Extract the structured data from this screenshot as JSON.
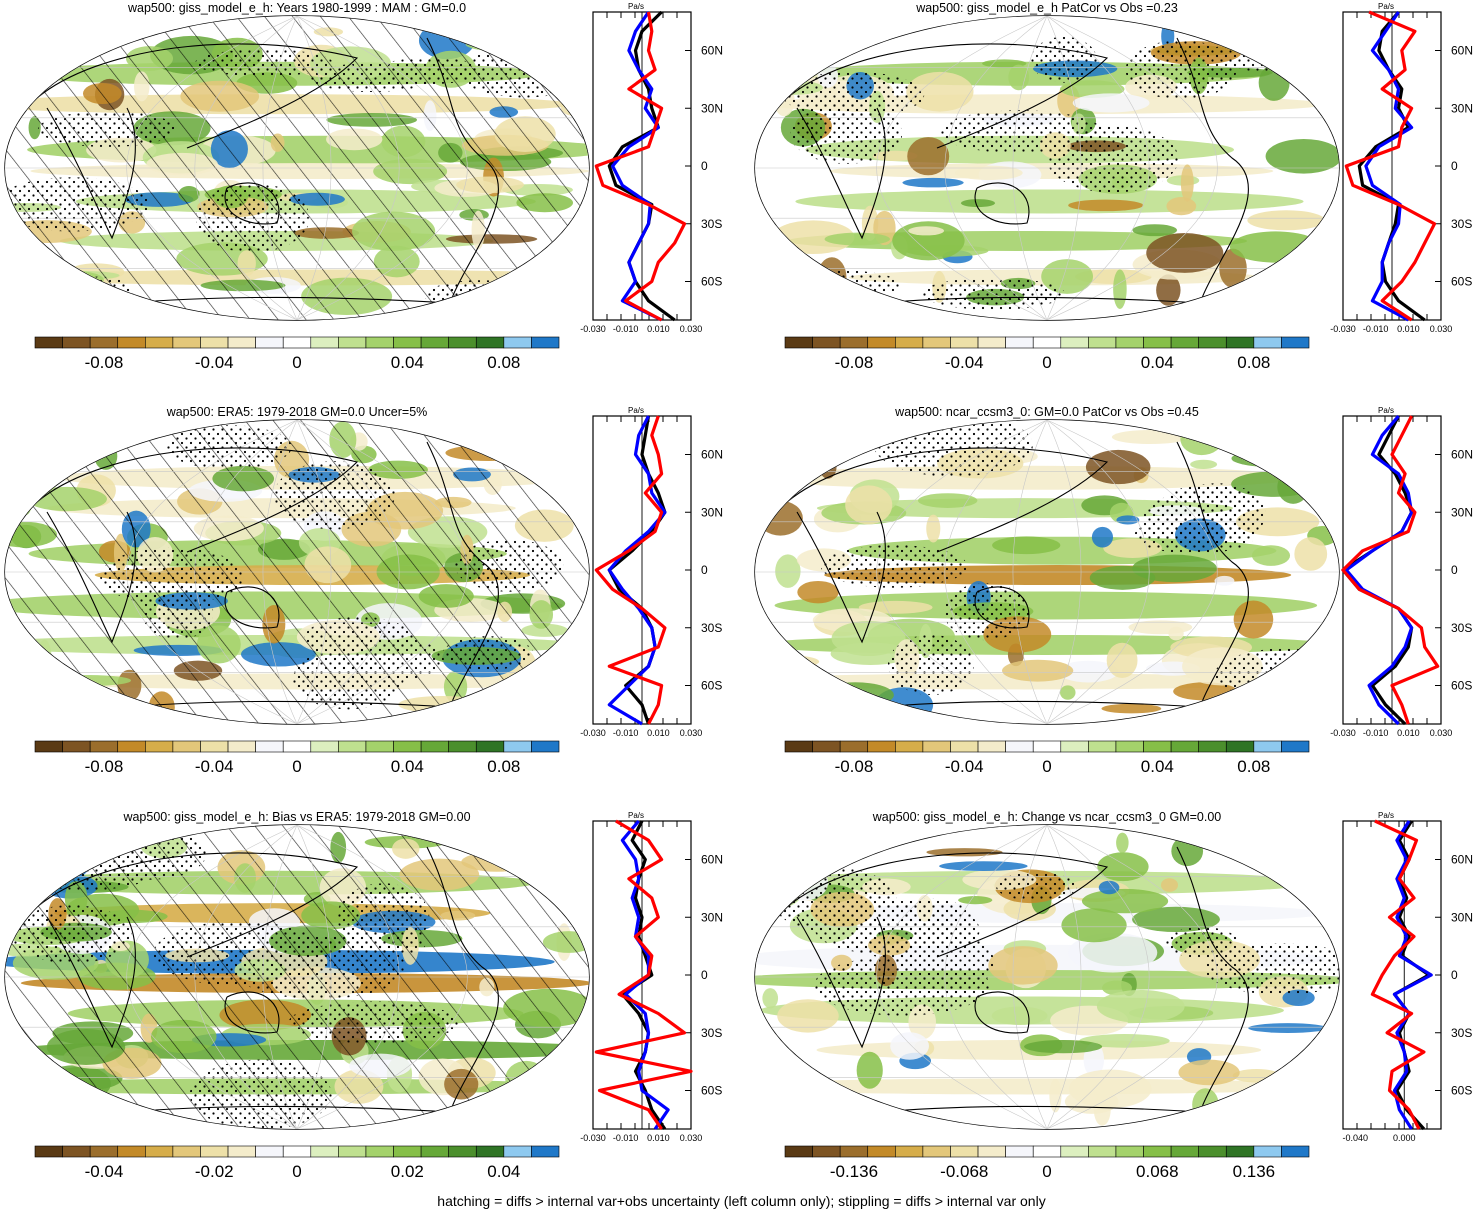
{
  "footnote": "hatching = diffs > internal var+obs uncertainty (left column only); stippling = diffs > internal var only",
  "colors": {
    "palette": [
      "#5a3a14",
      "#7d5423",
      "#9b6e2c",
      "#c38a28",
      "#d6ad4a",
      "#e3c77a",
      "#ede0a8",
      "#f4eccb",
      "#f5f6fb",
      "#ffffff",
      "#dcefbf",
      "#bfe08f",
      "#a4d26b",
      "#86bf48",
      "#66a838",
      "#4b8f2c",
      "#2f7425",
      "#8ec9ef",
      "#1f78c8"
    ],
    "model": "#000000",
    "obs": "#0000ff",
    "diff": "#ff0000"
  },
  "chart_data": [
    {
      "type": "heatmap",
      "title": "wap500: giss_model_e_h: Years 1980-1999 : MAM : GM=0.0",
      "hatching": true,
      "colorbar": {
        "ticks": [
          "-0.08",
          "-0.04",
          "0",
          "0.04",
          "0.08"
        ]
      },
      "profile": {
        "type": "line",
        "unit": "Pa/s",
        "xticks": [
          "-0.030",
          "-0.010",
          "0.010",
          "0.030"
        ],
        "xlim": [
          -0.03,
          0.03
        ],
        "ylim": [
          -80,
          80
        ],
        "yticks": [
          "60N",
          "30N",
          "0",
          "30S",
          "60S"
        ],
        "lat": [
          80,
          70,
          60,
          50,
          40,
          30,
          20,
          10,
          0,
          -10,
          -20,
          -30,
          -40,
          -50,
          -60,
          -70,
          -80
        ],
        "series": [
          {
            "color_key": "model",
            "values": [
              0.012,
              0.0,
              -0.004,
              -0.002,
              0.004,
              0.006,
              0.01,
              -0.012,
              -0.02,
              -0.016,
              0.006,
              0.004,
              -0.002,
              -0.008,
              -0.004,
              0.004,
              0.02
            ]
          },
          {
            "color_key": "obs",
            "values": [
              0.004,
              -0.004,
              -0.008,
              -0.002,
              0.006,
              0.002,
              0.01,
              -0.008,
              -0.018,
              -0.012,
              0.005,
              0.004,
              -0.002,
              -0.008,
              -0.004,
              -0.012,
              0.012
            ]
          },
          {
            "color_key": "diff",
            "values": [
              0.004,
              0.006,
              0.004,
              0.008,
              -0.008,
              0.012,
              0.008,
              0.004,
              -0.028,
              -0.024,
              0.004,
              0.026,
              0.02,
              0.01,
              0.006,
              -0.01,
              0.012
            ]
          }
        ]
      }
    },
    {
      "type": "heatmap",
      "title": "wap500: giss_model_e_h PatCor vs Obs =0.23",
      "hatching": false,
      "colorbar": {
        "ticks": [
          "-0.08",
          "-0.04",
          "0",
          "0.04",
          "0.08"
        ]
      },
      "profile": {
        "type": "line",
        "unit": "Pa/s",
        "xticks": [
          "-0.030",
          "-0.010",
          "0.010",
          "0.030"
        ],
        "xlim": [
          -0.03,
          0.03
        ],
        "ylim": [
          -80,
          80
        ],
        "yticks": [
          "60N",
          "30N",
          "0",
          "30S",
          "60S"
        ],
        "lat": [
          80,
          70,
          60,
          50,
          40,
          30,
          20,
          10,
          0,
          -10,
          -20,
          -30,
          -40,
          -50,
          -60,
          -70,
          -80
        ],
        "series": [
          {
            "color_key": "model",
            "values": [
              0.004,
              -0.006,
              -0.008,
              -0.002,
              0.006,
              0.004,
              0.01,
              -0.01,
              -0.02,
              -0.018,
              0.004,
              0.002,
              -0.002,
              -0.006,
              -0.004,
              0.004,
              0.02
            ]
          },
          {
            "color_key": "obs",
            "values": [
              0.004,
              -0.004,
              -0.012,
              -0.002,
              0.004,
              0.002,
              0.012,
              -0.008,
              -0.016,
              -0.012,
              0.005,
              0.004,
              -0.002,
              -0.006,
              -0.006,
              -0.012,
              0.01
            ]
          },
          {
            "color_key": "diff",
            "values": [
              -0.014,
              0.014,
              0.006,
              0.008,
              -0.006,
              0.012,
              0.006,
              0.004,
              -0.028,
              -0.024,
              0.004,
              0.026,
              0.02,
              0.014,
              0.006,
              -0.006,
              0.012
            ]
          }
        ]
      }
    },
    {
      "type": "heatmap",
      "title": "wap500: ERA5: 1979-2018 GM=0.0 Uncer=5%",
      "hatching": true,
      "colorbar": {
        "ticks": [
          "-0.08",
          "-0.04",
          "0",
          "0.04",
          "0.08"
        ]
      },
      "profile": {
        "type": "line",
        "unit": "Pa/s",
        "xticks": [
          "-0.030",
          "-0.010",
          "0.010",
          "0.030"
        ],
        "xlim": [
          -0.03,
          0.03
        ],
        "ylim": [
          -80,
          80
        ],
        "yticks": [
          "60N",
          "30N",
          "0",
          "30S",
          "60S"
        ],
        "lat": [
          80,
          70,
          60,
          50,
          40,
          30,
          20,
          10,
          0,
          -10,
          -20,
          -30,
          -40,
          -50,
          -60,
          -70,
          -80
        ],
        "series": [
          {
            "color_key": "model",
            "values": [
              0.004,
              0.002,
              0.0,
              0.004,
              0.01,
              0.014,
              0.006,
              -0.006,
              -0.02,
              -0.014,
              0.0,
              0.006,
              0.008,
              0.004,
              -0.01,
              0.0,
              0.004
            ]
          },
          {
            "color_key": "obs",
            "values": [
              0.004,
              -0.002,
              -0.004,
              0.004,
              0.006,
              0.014,
              0.004,
              -0.01,
              -0.02,
              -0.012,
              -0.002,
              0.006,
              0.008,
              0.004,
              -0.008,
              -0.02,
              0.0
            ]
          },
          {
            "color_key": "diff",
            "values": [
              0.01,
              0.006,
              0.01,
              0.012,
              0.002,
              0.012,
              0.008,
              -0.008,
              -0.028,
              -0.018,
              0.0,
              0.014,
              0.01,
              -0.02,
              0.012,
              0.01,
              0.004
            ]
          }
        ]
      }
    },
    {
      "type": "heatmap",
      "title": "wap500: ncar_ccsm3_0: GM=0.0 PatCor vs Obs =0.45",
      "hatching": false,
      "colorbar": {
        "ticks": [
          "-0.08",
          "-0.04",
          "0",
          "0.04",
          "0.08"
        ]
      },
      "profile": {
        "type": "line",
        "unit": "Pa/s",
        "xticks": [
          "-0.030",
          "-0.010",
          "0.010",
          "0.030"
        ],
        "xlim": [
          -0.03,
          0.03
        ],
        "ylim": [
          -80,
          80
        ],
        "yticks": [
          "60N",
          "30N",
          "0",
          "30S",
          "60S"
        ],
        "lat": [
          80,
          70,
          60,
          50,
          40,
          30,
          20,
          10,
          0,
          -10,
          -20,
          -30,
          -40,
          -50,
          -60,
          -70,
          -80
        ],
        "series": [
          {
            "color_key": "model",
            "values": [
              0.004,
              -0.002,
              -0.008,
              0.002,
              0.008,
              0.012,
              0.006,
              -0.012,
              -0.03,
              -0.02,
              0.004,
              0.012,
              0.01,
              0.002,
              -0.012,
              -0.004,
              0.008
            ]
          },
          {
            "color_key": "obs",
            "values": [
              0.004,
              -0.006,
              -0.012,
              0.004,
              0.01,
              0.012,
              0.006,
              -0.012,
              -0.028,
              -0.018,
              0.004,
              0.012,
              0.008,
              0.0,
              -0.014,
              -0.008,
              0.004
            ]
          },
          {
            "color_key": "diff",
            "values": [
              0.012,
              0.006,
              0.0,
              0.008,
              0.004,
              0.014,
              0.01,
              -0.018,
              -0.03,
              -0.02,
              0.004,
              0.018,
              0.02,
              0.028,
              0.0,
              0.006,
              0.01
            ]
          }
        ]
      }
    },
    {
      "type": "heatmap",
      "title": "wap500: giss_model_e_h: Bias vs ERA5: 1979-2018 GM=0.00",
      "hatching": true,
      "colorbar": {
        "ticks": [
          "-0.04",
          "-0.02",
          "0",
          "0.02",
          "0.04"
        ]
      },
      "profile": {
        "type": "line",
        "unit": "Pa/s",
        "xticks": [
          "-0.030",
          "-0.010",
          "0.010",
          "0.030"
        ],
        "xlim": [
          -0.03,
          0.03
        ],
        "ylim": [
          -80,
          80
        ],
        "yticks": [
          "60N",
          "30N",
          "0",
          "30S",
          "60S"
        ],
        "lat": [
          80,
          70,
          60,
          50,
          40,
          30,
          20,
          10,
          0,
          -10,
          -20,
          -30,
          -40,
          -50,
          -60,
          -70,
          -80
        ],
        "series": [
          {
            "color_key": "model",
            "values": [
              0.0,
              -0.006,
              0.002,
              -0.002,
              -0.004,
              0.0,
              -0.002,
              0.002,
              0.006,
              -0.012,
              -0.002,
              0.004,
              0.002,
              -0.004,
              0.002,
              0.006,
              0.014
            ]
          },
          {
            "color_key": "obs",
            "values": [
              -0.002,
              -0.012,
              -0.004,
              -0.002,
              -0.006,
              -0.002,
              -0.004,
              0.004,
              0.004,
              -0.01,
              0.002,
              0.004,
              0.002,
              -0.002,
              0.0,
              0.016,
              0.008
            ]
          },
          {
            "color_key": "diff",
            "values": [
              -0.016,
              0.004,
              0.012,
              -0.008,
              0.006,
              0.01,
              -0.004,
              0.006,
              0.004,
              -0.014,
              0.01,
              0.026,
              -0.028,
              0.03,
              -0.026,
              0.004,
              0.012
            ]
          }
        ]
      }
    },
    {
      "type": "heatmap",
      "title": "wap500: giss_model_e_h: Change vs ncar_ccsm3_0 GM=0.00",
      "hatching": false,
      "colorbar": {
        "ticks": [
          "-0.136",
          "-0.068",
          "0",
          "0.068",
          "0.136"
        ]
      },
      "profile": {
        "type": "line",
        "unit": "Pa/s",
        "xticks": [
          "-0.040",
          "0.000"
        ],
        "xlim": [
          -0.05,
          0.03
        ],
        "ylim": [
          -80,
          80
        ],
        "yticks": [
          "60N",
          "30N",
          "0",
          "30S",
          "60S"
        ],
        "lat": [
          80,
          70,
          60,
          50,
          40,
          30,
          20,
          10,
          0,
          -10,
          -20,
          -30,
          -40,
          -50,
          -60,
          -70,
          -80
        ],
        "series": [
          {
            "color_key": "model",
            "values": [
              0.006,
              -0.004,
              0.004,
              -0.004,
              0.002,
              -0.004,
              0.004,
              -0.002,
              0.02,
              -0.008,
              0.004,
              -0.004,
              0.0,
              0.004,
              -0.006,
              0.002,
              0.016
            ]
          },
          {
            "color_key": "obs",
            "values": [
              0.004,
              -0.006,
              0.002,
              -0.006,
              0.0,
              -0.006,
              0.002,
              -0.004,
              0.022,
              -0.008,
              0.004,
              -0.006,
              0.0,
              0.002,
              -0.008,
              -0.004,
              0.006
            ]
          },
          {
            "color_key": "diff",
            "values": [
              -0.024,
              0.01,
              0.004,
              -0.004,
              0.008,
              -0.012,
              0.008,
              -0.008,
              -0.018,
              -0.026,
              0.006,
              -0.014,
              0.016,
              -0.01,
              -0.012,
              0.004,
              0.012
            ]
          }
        ]
      }
    }
  ]
}
